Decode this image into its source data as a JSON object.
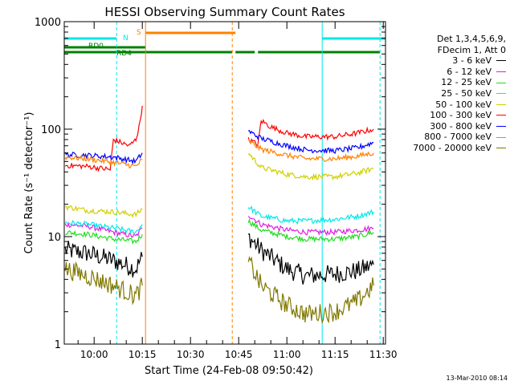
{
  "chart_data": {
    "type": "line",
    "title": "HESSI Observing Summary Count Rates",
    "xlabel": "Start Time (24-Feb-08 09:50:42)",
    "ylabel": "Count Rate (s⁻¹ detector⁻¹)",
    "yscale": "log",
    "ylim": [
      1,
      1000
    ],
    "xlim": [
      "09:50:42",
      "11:30:42"
    ],
    "x_ticks": [
      "10:00",
      "10:15",
      "10:30",
      "10:45",
      "11:00",
      "11:15",
      "11:30"
    ],
    "y_ticks": [
      "1",
      "10",
      "100",
      "1000"
    ],
    "legend_header": [
      "Det 1,3,4,5,6,9,",
      "FDecim 1, Att 0"
    ],
    "series": [
      {
        "name": "3 - 6 keV",
        "color": "#000000",
        "segments": [
          {
            "x": [
              "09:51",
              "09:58",
              "10:06",
              "10:13",
              "10:15"
            ],
            "y": [
              7.5,
              7.0,
              6.0,
              5.0,
              6.5
            ]
          },
          {
            "x": [
              "10:48",
              "10:52",
              "11:00",
              "11:06",
              "11:15",
              "11:22",
              "11:27"
            ],
            "y": [
              10.0,
              7.5,
              5.0,
              4.3,
              4.5,
              4.8,
              5.5
            ]
          }
        ]
      },
      {
        "name": "6 - 12 keV",
        "color": "#e020e0",
        "segments": [
          {
            "x": [
              "09:51",
              "09:58",
              "10:06",
              "10:13",
              "10:15"
            ],
            "y": [
              13.0,
              12.5,
              11.0,
              10.0,
              12.0
            ]
          },
          {
            "x": [
              "10:48",
              "10:52",
              "11:00",
              "11:06",
              "11:15",
              "11:22",
              "11:27"
            ],
            "y": [
              16.0,
              13.0,
              11.5,
              11.0,
              11.0,
              11.5,
              12.0
            ]
          }
        ]
      },
      {
        "name": "12 - 25 keV",
        "color": "#22dd22",
        "segments": [
          {
            "x": [
              "09:51",
              "09:58",
              "10:06",
              "10:13",
              "10:15"
            ],
            "y": [
              11.0,
              10.5,
              9.5,
              9.0,
              10.5
            ]
          },
          {
            "x": [
              "10:48",
              "10:52",
              "11:00",
              "11:06",
              "11:15",
              "11:22",
              "11:27"
            ],
            "y": [
              14.0,
              11.5,
              10.0,
              9.5,
              9.5,
              10.0,
              11.0
            ]
          }
        ]
      },
      {
        "name": "25 - 50 keV",
        "color": "#00e8e8",
        "segments": [
          {
            "x": [
              "09:51",
              "09:58",
              "10:06",
              "10:13",
              "10:15"
            ],
            "y": [
              13.5,
              13.0,
              12.0,
              11.0,
              13.0
            ]
          },
          {
            "x": [
              "10:48",
              "10:52",
              "11:00",
              "11:06",
              "11:15",
              "11:22",
              "11:27"
            ],
            "y": [
              19.0,
              15.5,
              14.0,
              14.0,
              14.5,
              15.5,
              17.0
            ]
          }
        ]
      },
      {
        "name": "50 - 100 keV",
        "color": "#d0d000",
        "segments": [
          {
            "x": [
              "09:51",
              "09:58",
              "10:06",
              "10:13",
              "10:15"
            ],
            "y": [
              19.0,
              17.5,
              17.0,
              16.0,
              18.0
            ]
          },
          {
            "x": [
              "10:48",
              "10:52",
              "11:00",
              "11:06",
              "11:15",
              "11:22",
              "11:27"
            ],
            "y": [
              60.0,
              44.0,
              38.0,
              36.0,
              36.0,
              39.0,
              43.0
            ]
          }
        ]
      },
      {
        "name": "100 - 300 keV",
        "color": "#ff0000",
        "segments": [
          {
            "x": [
              "09:51",
              "09:58",
              "10:05",
              "10:06",
              "10:11",
              "10:13",
              "10:14",
              "10:15"
            ],
            "y": [
              46.0,
              45.0,
              42.0,
              80.0,
              70.0,
              80.0,
              105.0,
              165.0
            ]
          },
          {
            "x": [
              "10:48",
              "10:51",
              "10:52",
              "10:55",
              "11:00",
              "11:06",
              "11:15",
              "11:22",
              "11:27"
            ],
            "y": [
              80.0,
              72.0,
              120.0,
              105.0,
              92.0,
              85.0,
              85.0,
              92.0,
              100.0
            ]
          }
        ]
      },
      {
        "name": "300 - 800 keV",
        "color": "#0000ff",
        "segments": [
          {
            "x": [
              "09:51",
              "09:58",
              "10:06",
              "10:13",
              "10:15"
            ],
            "y": [
              58.0,
              57.0,
              55.0,
              50.0,
              60.0
            ]
          },
          {
            "x": [
              "10:48",
              "10:52",
              "11:00",
              "11:06",
              "11:15",
              "11:22",
              "11:27"
            ],
            "y": [
              96.0,
              82.0,
              70.0,
              64.0,
              63.0,
              67.0,
              75.0
            ]
          }
        ]
      },
      {
        "name": "800 - 7000 keV",
        "color": "#ff8000",
        "segments": [
          {
            "x": [
              "09:51",
              "09:58",
              "10:06",
              "10:13",
              "10:15"
            ],
            "y": [
              55.0,
              53.0,
              49.0,
              45.0,
              52.0
            ]
          },
          {
            "x": [
              "10:48",
              "10:52",
              "11:00",
              "11:06",
              "11:15",
              "11:22",
              "11:27"
            ],
            "y": [
              78.0,
              65.0,
              57.0,
              53.0,
              53.0,
              56.0,
              60.0
            ]
          }
        ]
      },
      {
        "name": "7000 - 20000 keV",
        "color": "#807800",
        "segments": [
          {
            "x": [
              "09:51",
              "09:58",
              "10:06",
              "10:13",
              "10:15"
            ],
            "y": [
              5.0,
              4.3,
              3.5,
              2.8,
              3.5
            ]
          },
          {
            "x": [
              "10:48",
              "10:52",
              "11:00",
              "11:06",
              "11:15",
              "11:22",
              "11:27"
            ],
            "y": [
              6.0,
              3.5,
              2.3,
              1.9,
              2.0,
              2.5,
              3.5
            ]
          }
        ]
      }
    ],
    "flags": [
      {
        "label": "N",
        "color": "#00e8e8",
        "segments": [
          [
            "09:50:42",
            "10:07"
          ],
          [
            "11:11",
            "11:30:42"
          ]
        ]
      },
      {
        "label": "S",
        "color": "#ff8000",
        "segments": [
          [
            "10:16",
            "10:44"
          ]
        ]
      },
      {
        "label": "RD0",
        "color": "#008000",
        "segments": [
          [
            "09:50:42",
            "10:16"
          ]
        ]
      },
      {
        "label": "RD4",
        "color": "#008000",
        "segments": [
          [
            "09:50:42",
            "10:43"
          ],
          [
            "10:44",
            "10:50"
          ],
          [
            "10:51",
            "11:29"
          ]
        ]
      }
    ],
    "vlines": [
      {
        "x": "09:50:42",
        "color": "#00e8e8",
        "style": "solid"
      },
      {
        "x": "10:07",
        "color": "#00e8e8",
        "style": "dashed"
      },
      {
        "x": "10:16",
        "color": "#ff8000",
        "style": "solid"
      },
      {
        "x": "10:43",
        "color": "#ff8000",
        "style": "dashed"
      },
      {
        "x": "11:11",
        "color": "#00e8e8",
        "style": "solid"
      },
      {
        "x": "11:29",
        "color": "#00e8e8",
        "style": "dashed"
      }
    ]
  },
  "footer": "13-Mar-2010 08:14"
}
